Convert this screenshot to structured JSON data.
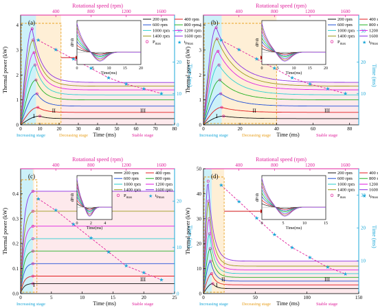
{
  "colors": {
    "series": [
      "#111111",
      "#e31a1c",
      "#1f4fd6",
      "#20b020",
      "#2dd0d0",
      "#e020e0",
      "#9a9a1a",
      "#8a2be2"
    ],
    "top_axis": "#e0209c",
    "right_axis": "#1aa7d8",
    "fill_increasing": "#bfeef7",
    "fill_decreasing": "#fde9c8",
    "fill_stable": "#fbd7dc",
    "pmax_marker": "#e0209c",
    "tpmax_marker": "#1aa7d8",
    "box": "#e8a020"
  },
  "common": {
    "ylabel": "Thermal power (kW)",
    "xlabel": "Time (ms)",
    "top_label": "Rotational speed (rpm)",
    "right_label": "Time (ms)",
    "inset_xlabel": "Time(ms)",
    "inset_ylabel": "dP/dt",
    "legend": [
      "200 rpm",
      "400 rpm",
      "600 rpm",
      "800 rpm",
      "1000 rpm",
      "1200 rpm",
      "1400 rpm",
      "1600 rpm"
    ],
    "marker_legend": [
      "P",
      "t"
    ],
    "marker_sub": [
      "max",
      "P"
    ],
    "marker_sub2": [
      "",
      "max"
    ]
  },
  "chart_data": [
    {
      "type": "line",
      "panel": "(a)",
      "x_ticks": [
        "0",
        "10",
        "20",
        "30",
        "40",
        "50",
        "60",
        "70",
        "80"
      ],
      "xlim": [
        0,
        80
      ],
      "y_ticks": [
        "0",
        "1",
        "2",
        "3",
        "4"
      ],
      "ylim": [
        0,
        4.4
      ],
      "top_ticks": [
        "400",
        "800",
        "1200",
        "1600"
      ],
      "top_lim": [
        0,
        1750
      ],
      "right_ticks": [
        "0",
        "10",
        "20",
        "30"
      ],
      "right_lim": [
        0,
        35
      ],
      "stage_bounds": [
        8,
        21
      ],
      "stages": [
        "Increasing stage",
        "Deceasing stage",
        "Stable stage"
      ],
      "roman": [
        "I",
        "II",
        "III"
      ],
      "peaks": [
        0.35,
        0.7,
        1.25,
        1.8,
        2.4,
        2.9,
        3.4,
        3.85
      ],
      "peak_times": [
        10,
        9,
        8.5,
        8,
        7.5,
        7,
        6.5,
        6
      ],
      "steady": [
        0.25,
        0.5,
        0.75,
        1.0,
        1.2,
        1.4,
        1.55,
        1.7
      ],
      "tmax_curve": [
        [
          200,
          27
        ],
        [
          400,
          24
        ],
        [
          600,
          21
        ],
        [
          800,
          18
        ],
        [
          1000,
          15
        ],
        [
          1200,
          13
        ],
        [
          1400,
          11.5
        ],
        [
          1600,
          10
        ]
      ],
      "inset": {
        "x_ticks": [
          "0",
          "5",
          "10",
          "15",
          "20"
        ],
        "xlim": [
          0,
          20
        ]
      }
    },
    {
      "type": "line",
      "panel": "(b)",
      "x_ticks": [
        "0",
        "20",
        "40",
        "60",
        "80"
      ],
      "xlim": [
        0,
        85
      ],
      "y_ticks": [
        "0",
        "1",
        "2",
        "3",
        "4"
      ],
      "ylim": [
        0,
        4.4
      ],
      "top_ticks": [
        "400",
        "800",
        "1200",
        "1600"
      ],
      "top_lim": [
        0,
        1750
      ],
      "right_ticks": [
        "10",
        "20",
        "30"
      ],
      "right_lim": [
        0,
        35
      ],
      "stage_bounds": [
        10,
        40
      ],
      "stages": [
        "Increasing stage",
        "Deceasing stage",
        "Stable stage"
      ],
      "roman": [
        "I",
        "II",
        "III"
      ],
      "peaks": [
        0.35,
        0.7,
        1.25,
        1.8,
        2.4,
        2.95,
        3.45,
        3.9
      ],
      "peak_times": [
        11,
        10,
        9.5,
        9,
        8.5,
        8,
        7.5,
        7
      ],
      "steady": [
        0.25,
        0.5,
        0.75,
        1.0,
        1.2,
        1.4,
        1.55,
        1.7
      ],
      "tmax_curve": [
        [
          200,
          27
        ],
        [
          400,
          24
        ],
        [
          600,
          21
        ],
        [
          800,
          18
        ],
        [
          1000,
          15
        ],
        [
          1200,
          13
        ],
        [
          1400,
          11.5
        ],
        [
          1600,
          10
        ]
      ],
      "inset": {
        "x_ticks": [
          "0",
          "5",
          "10",
          "15",
          "20"
        ],
        "xlim": [
          0,
          20
        ]
      }
    },
    {
      "type": "line",
      "panel": "(c)",
      "x_ticks": [
        "0",
        "5",
        "10",
        "15",
        "20",
        "25"
      ],
      "xlim": [
        0,
        25
      ],
      "y_ticks": [
        "0.0",
        "0.1",
        "0.2",
        "0.3",
        "0.4"
      ],
      "ylim": [
        0,
        0.5
      ],
      "top_ticks": [
        "400",
        "800",
        "1200",
        "1600"
      ],
      "top_lim": [
        0,
        1750
      ],
      "right_ticks": [
        "0",
        "10",
        "20"
      ],
      "right_lim": [
        0,
        27
      ],
      "stage_bounds": [
        2,
        2.2
      ],
      "stages": [
        "Increasing stage",
        "",
        "Stable stage"
      ],
      "roman": [
        "I",
        "",
        "III"
      ],
      "peaks": [
        0.04,
        0.07,
        0.12,
        0.17,
        0.22,
        0.27,
        0.33,
        0.41
      ],
      "peak_times": [
        2,
        2,
        2,
        2,
        2,
        2,
        2,
        2
      ],
      "steady": [
        0.04,
        0.07,
        0.12,
        0.17,
        0.22,
        0.27,
        0.33,
        0.41
      ],
      "tmax_curve": [
        [
          200,
          20.5
        ],
        [
          400,
          18
        ],
        [
          600,
          15
        ],
        [
          800,
          12
        ],
        [
          1000,
          9
        ],
        [
          1200,
          6
        ],
        [
          1400,
          4.5
        ],
        [
          1600,
          3
        ]
      ],
      "inset": {
        "x_ticks": [
          "0",
          "2",
          "4"
        ],
        "xlim": [
          0,
          5
        ]
      }
    },
    {
      "type": "line",
      "panel": "(d)",
      "x_ticks": [
        "0",
        "50",
        "100",
        "150"
      ],
      "xlim": [
        0,
        150
      ],
      "y_ticks": [
        "0",
        "10",
        "20",
        "30",
        "40",
        "50"
      ],
      "ylim": [
        0,
        50
      ],
      "top_ticks": [
        "400",
        "800",
        "1200",
        "1600"
      ],
      "top_lim": [
        0,
        1750
      ],
      "right_ticks": [
        "10",
        "20",
        "30"
      ],
      "right_lim": [
        0,
        38
      ],
      "stage_bounds": [
        8,
        20
      ],
      "stages": [
        "Increasing stage",
        "Deceasing stage",
        "Stable stage"
      ],
      "roman": [
        "I",
        "II",
        "III"
      ],
      "peaks": [
        4,
        8,
        13,
        18,
        24,
        30,
        37,
        45
      ],
      "peak_times": [
        9,
        8,
        7,
        6.5,
        6,
        5.5,
        5,
        4.5
      ],
      "steady": [
        2,
        3.5,
        5,
        6.5,
        8,
        9.5,
        11,
        13
      ],
      "tmax_curve": [
        [
          200,
          33
        ],
        [
          400,
          28
        ],
        [
          600,
          23
        ],
        [
          800,
          18
        ],
        [
          1000,
          14
        ],
        [
          1200,
          11
        ],
        [
          1400,
          8
        ],
        [
          1600,
          6
        ]
      ],
      "inset": {
        "x_ticks": [
          "0",
          "5",
          "10",
          "15"
        ],
        "xlim": [
          0,
          15
        ]
      }
    }
  ]
}
